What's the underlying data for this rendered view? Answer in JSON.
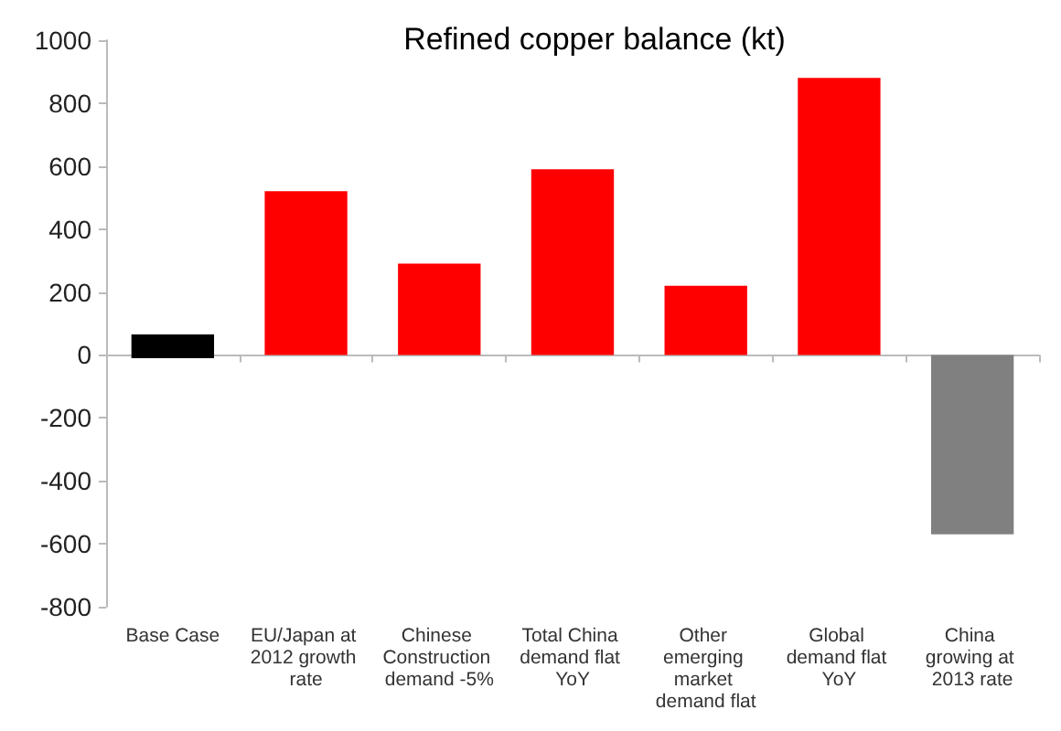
{
  "chart_data": {
    "type": "bar",
    "title": "Refined copper balance (kt)",
    "categories": [
      "Base Case",
      "EU/Japan at 2012 growth rate",
      "Chinese Construction demand -5%",
      "Total China demand flat YoY",
      "Other emerging market demand flat",
      "Global demand flat YoY",
      "China growing at 2013 rate"
    ],
    "values": [
      75,
      520,
      290,
      590,
      220,
      880,
      -570
    ],
    "base": [
      -10,
      0,
      0,
      0,
      0,
      0,
      0
    ],
    "colors": [
      "#000000",
      "#ff0000",
      "#ff0000",
      "#ff0000",
      "#ff0000",
      "#ff0000",
      "#808080"
    ],
    "ylim": [
      -800,
      1000
    ],
    "yticks": [
      -800,
      -600,
      -400,
      -200,
      0,
      200,
      400,
      600,
      800,
      1000
    ]
  }
}
